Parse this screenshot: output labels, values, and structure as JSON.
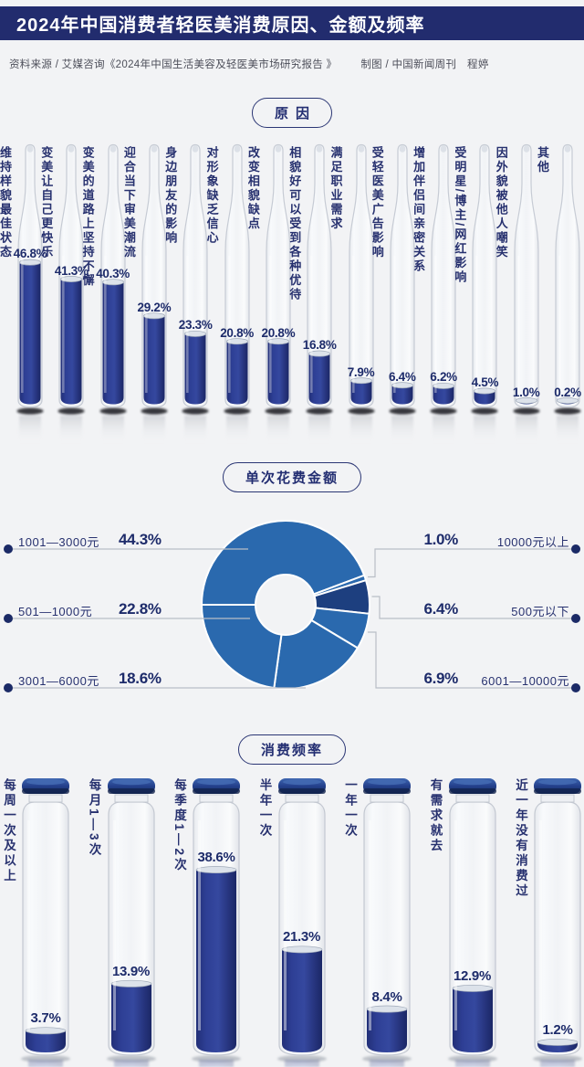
{
  "title_bar": {
    "title": "2024年中国消费者轻医美消费原因、金额及频率"
  },
  "source_line": {
    "text": "资料来源 / 艾媒咨询《2024年中国生活美容及轻医美市场研究报告 》",
    "credit": "制图 / 中国新闻周刊　程婷"
  },
  "sections": {
    "reasons_label": "原因",
    "spend_label": "单次花费金额",
    "frequency_label": "消费频率"
  },
  "colors": {
    "header_navy": "#222c6e",
    "text_navy": "#232e72",
    "liquid_navy": "#2b3a8c",
    "donut_blue": "#2a69ae",
    "donut_dark": "#1d3f7f",
    "leader_line": "#b9bec6",
    "dot_navy": "#1b2a66"
  },
  "spend_legend": {
    "left": [
      {
        "label": "1001—3000元",
        "pct": "44.3%"
      },
      {
        "label": "501—1000元",
        "pct": "22.8%"
      },
      {
        "label": "3001—6000元",
        "pct": "18.6%"
      }
    ],
    "right": [
      {
        "pct": "1.0%",
        "label": "10000元以上"
      },
      {
        "pct": "6.4%",
        "label": "500元以下"
      },
      {
        "pct": "6.9%",
        "label": "6001—10000元"
      }
    ]
  },
  "chart_data": [
    {
      "type": "bar",
      "id": "reasons",
      "title": "原因",
      "glyph": "ampoule",
      "unit": "%",
      "ylim": [
        0,
        50
      ],
      "categories": [
        "维持样貌最佳状态",
        "变美让自己更快乐",
        "变美的道路上坚持不懈",
        "迎合当下审美潮流",
        "身边朋友的影响",
        "对形象缺乏信心",
        "改变相貌缺点",
        "相貌好可以受到各种优待",
        "满足职业需求",
        "受轻医美广告影响",
        "增加伴侣间亲密关系",
        "受明星/博主/网红影响",
        "因外貌被他人嘲笑",
        "其他"
      ],
      "values": [
        46.8,
        41.3,
        40.3,
        29.2,
        23.3,
        20.8,
        20.8,
        16.8,
        7.9,
        6.4,
        6.2,
        4.5,
        1.0,
        0.2
      ],
      "labels": [
        "46.8%",
        "41.3%",
        "40.3%",
        "29.2%",
        "23.3%",
        "20.8%",
        "20.8%",
        "16.8%",
        "7.9%",
        "6.4%",
        "6.2%",
        "4.5%",
        "1.0%",
        "0.2%"
      ]
    },
    {
      "type": "pie",
      "id": "spend",
      "title": "单次花费金额",
      "donut": true,
      "start_clock_deg": 270,
      "clockwise": true,
      "legend_position": "both-sides",
      "slices": [
        {
          "label": "1001—3000元",
          "value": 44.3,
          "color": "#2a69ae"
        },
        {
          "label": "10000元以上",
          "value": 1.0,
          "color": "#2a69ae"
        },
        {
          "label": "500元以下",
          "value": 6.4,
          "color": "#1d3f7f"
        },
        {
          "label": "6001—10000元",
          "value": 6.9,
          "color": "#2a69ae"
        },
        {
          "label": "3001—6000元",
          "value": 18.6,
          "color": "#2a69ae"
        },
        {
          "label": "501—1000元",
          "value": 22.8,
          "color": "#2a69ae"
        }
      ]
    },
    {
      "type": "bar",
      "id": "frequency",
      "title": "消费频率",
      "glyph": "vial",
      "unit": "%",
      "ylim": [
        0,
        40
      ],
      "categories": [
        "每周一次及以上",
        "每月1—3次",
        "每季度1—2次",
        "半年一次",
        "一年一次",
        "有需求就去",
        "近一年没有消费过"
      ],
      "values": [
        3.7,
        13.9,
        38.6,
        21.3,
        8.4,
        12.9,
        1.2
      ],
      "labels": [
        "3.7%",
        "13.9%",
        "38.6%",
        "21.3%",
        "8.4%",
        "12.9%",
        "1.2%"
      ]
    }
  ]
}
